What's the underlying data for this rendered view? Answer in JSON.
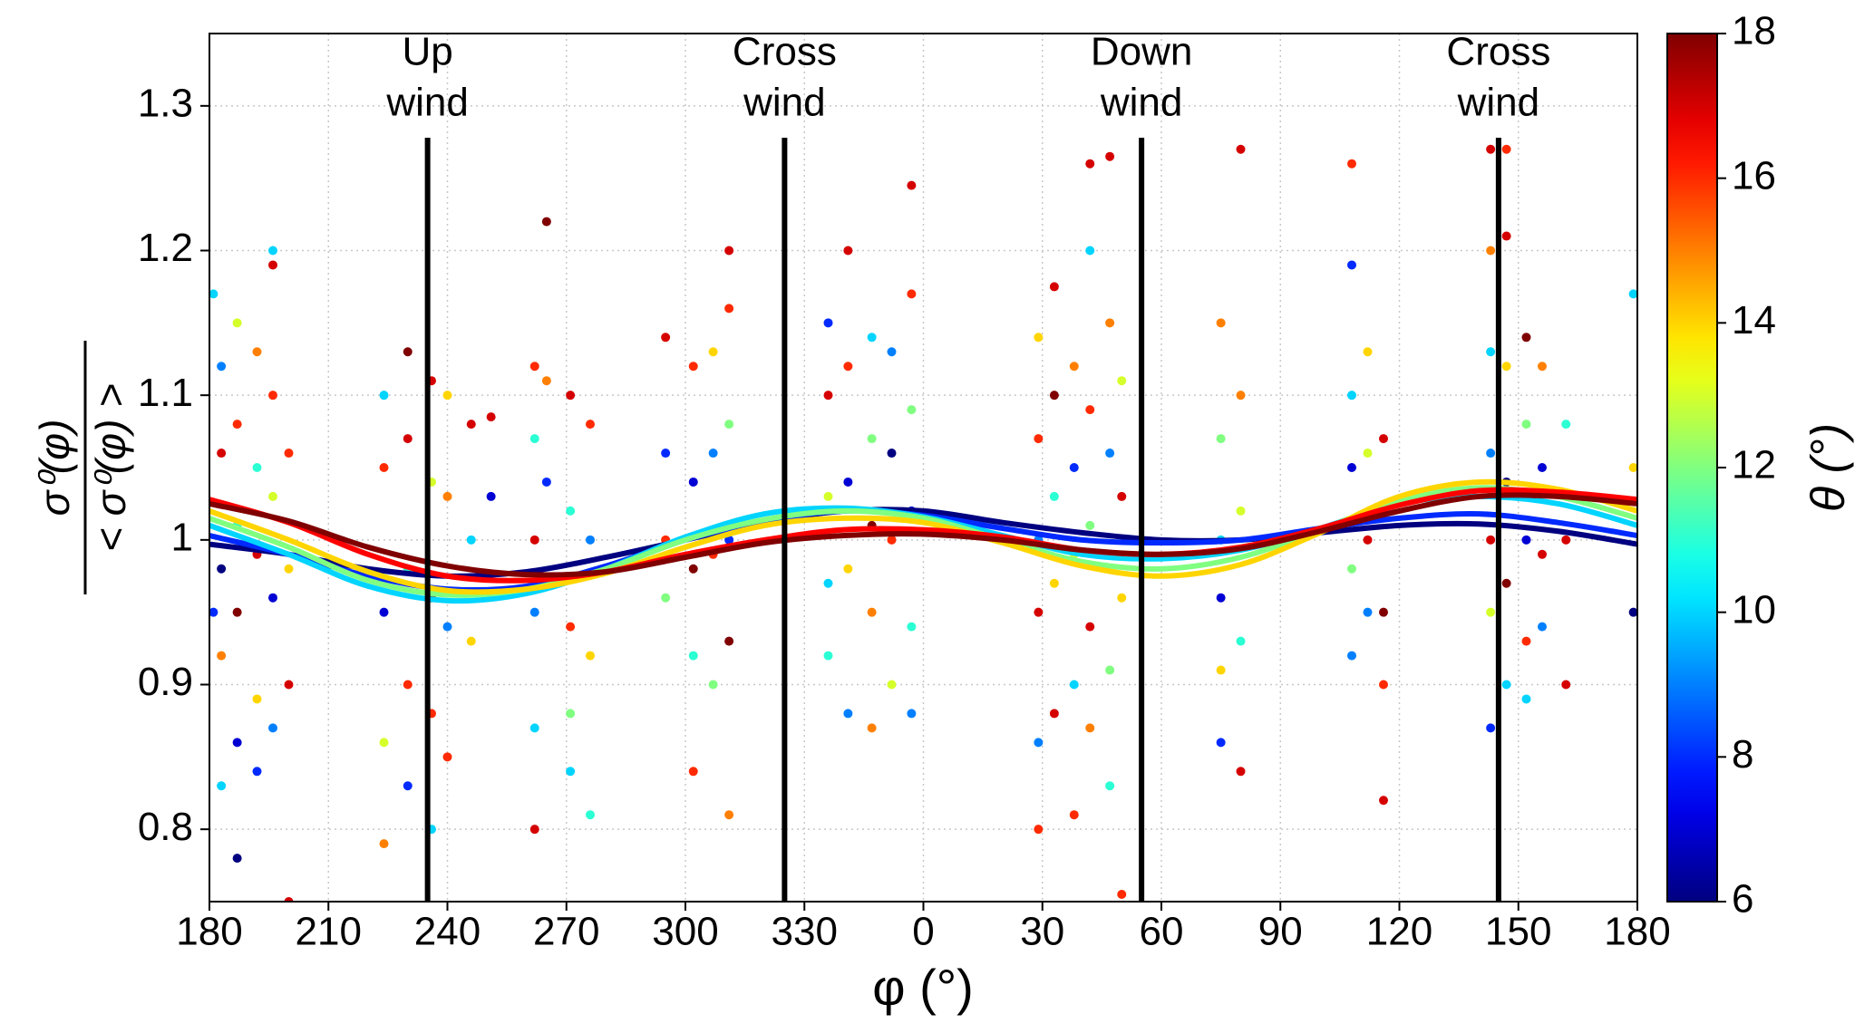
{
  "chart_data": {
    "type": "scatter",
    "xlabel": "φ (°)",
    "ylabel_numerator": "σ⁰(φ)",
    "ylabel_denominator": "< σ⁰(φ) >",
    "colorbar_label": "θ (°)",
    "xlim": [
      180,
      540
    ],
    "xticks": [
      180,
      210,
      240,
      270,
      300,
      330,
      {
        "value": 360,
        "label": "0"
      },
      {
        "value": 390,
        "label": "30"
      },
      {
        "value": 420,
        "label": "60"
      },
      {
        "value": 450,
        "label": "90"
      },
      {
        "value": 480,
        "label": "120"
      },
      {
        "value": 510,
        "label": "150"
      },
      {
        "value": 540,
        "label": "180"
      }
    ],
    "ylim": [
      0.75,
      1.35
    ],
    "yticks": [
      0.8,
      0.9,
      1.0,
      1.1,
      1.2,
      1.3
    ],
    "clim": [
      6,
      18
    ],
    "cticks": [
      6,
      8,
      10,
      12,
      14,
      16,
      18
    ],
    "colormap": "jet",
    "grid": true,
    "annotations": [
      {
        "x": 235,
        "lines": [
          "Up",
          "wind"
        ]
      },
      {
        "x": 325,
        "lines": [
          "Cross",
          "wind"
        ]
      },
      {
        "x": 415,
        "lines": [
          "Down",
          "wind"
        ]
      },
      {
        "x": 505,
        "lines": [
          "Cross",
          "wind"
        ]
      }
    ],
    "curve_x": [
      180,
      200,
      220,
      240,
      260,
      280,
      300,
      320,
      340,
      360,
      380,
      400,
      420,
      440,
      460,
      480,
      500,
      520,
      540
    ],
    "curves": [
      {
        "theta": 6,
        "values": [
          0.997,
          0.99,
          0.98,
          0.975,
          0.978,
          0.988,
          1.0,
          1.012,
          1.02,
          1.02,
          1.012,
          1.005,
          1.0,
          1.0,
          1.005,
          1.01,
          1.011,
          1.006,
          0.997
        ]
      },
      {
        "theta": 8,
        "values": [
          1.003,
          0.99,
          0.975,
          0.966,
          0.968,
          0.982,
          1.0,
          1.013,
          1.02,
          1.017,
          1.008,
          1.0,
          0.998,
          1.0,
          1.008,
          1.015,
          1.018,
          1.012,
          1.003
        ]
      },
      {
        "theta": 10,
        "values": [
          1.01,
          0.99,
          0.968,
          0.958,
          0.963,
          0.98,
          1.002,
          1.018,
          1.022,
          1.016,
          1.003,
          0.99,
          0.987,
          0.993,
          1.008,
          1.025,
          1.03,
          1.025,
          1.01
        ]
      },
      {
        "theta": 12,
        "values": [
          1.015,
          0.995,
          0.972,
          0.962,
          0.966,
          0.98,
          1.0,
          1.014,
          1.02,
          1.015,
          1.0,
          0.985,
          0.98,
          0.988,
          1.007,
          1.027,
          1.036,
          1.03,
          1.015
        ]
      },
      {
        "theta": 14,
        "values": [
          1.02,
          1.0,
          0.978,
          0.965,
          0.966,
          0.977,
          0.995,
          1.01,
          1.015,
          1.012,
          0.998,
          0.982,
          0.975,
          0.983,
          1.005,
          1.03,
          1.04,
          1.035,
          1.02
        ]
      },
      {
        "theta": 16.5,
        "values": [
          1.028,
          1.012,
          0.99,
          0.975,
          0.972,
          0.978,
          0.99,
          1.0,
          1.007,
          1.007,
          1.002,
          0.993,
          0.99,
          0.995,
          1.008,
          1.024,
          1.034,
          1.033,
          1.028
        ]
      },
      {
        "theta": 18,
        "values": [
          1.025,
          1.013,
          0.995,
          0.982,
          0.976,
          0.978,
          0.988,
          0.998,
          1.003,
          1.004,
          1.0,
          0.993,
          0.99,
          0.994,
          1.006,
          1.02,
          1.03,
          1.03,
          1.025
        ]
      }
    ],
    "points": [
      {
        "x": 181,
        "y": 1.17,
        "theta": 10
      },
      {
        "x": 181,
        "y": 0.95,
        "theta": 8
      },
      {
        "x": 183,
        "y": 1.12,
        "theta": 9
      },
      {
        "x": 183,
        "y": 1.06,
        "theta": 17
      },
      {
        "x": 183,
        "y": 0.98,
        "theta": 6
      },
      {
        "x": 183,
        "y": 0.92,
        "theta": 15
      },
      {
        "x": 183,
        "y": 0.83,
        "theta": 10
      },
      {
        "x": 187,
        "y": 1.15,
        "theta": 13
      },
      {
        "x": 187,
        "y": 1.08,
        "theta": 16
      },
      {
        "x": 187,
        "y": 1.01,
        "theta": 11
      },
      {
        "x": 187,
        "y": 0.95,
        "theta": 18
      },
      {
        "x": 187,
        "y": 0.86,
        "theta": 7
      },
      {
        "x": 187,
        "y": 0.78,
        "theta": 6
      },
      {
        "x": 192,
        "y": 1.13,
        "theta": 15
      },
      {
        "x": 192,
        "y": 1.05,
        "theta": 11
      },
      {
        "x": 192,
        "y": 0.99,
        "theta": 17
      },
      {
        "x": 192,
        "y": 0.89,
        "theta": 14
      },
      {
        "x": 192,
        "y": 0.84,
        "theta": 8
      },
      {
        "x": 196,
        "y": 1.2,
        "theta": 10
      },
      {
        "x": 196,
        "y": 1.19,
        "theta": 17
      },
      {
        "x": 196,
        "y": 1.1,
        "theta": 16
      },
      {
        "x": 196,
        "y": 1.03,
        "theta": 13
      },
      {
        "x": 196,
        "y": 0.96,
        "theta": 7
      },
      {
        "x": 196,
        "y": 0.87,
        "theta": 9
      },
      {
        "x": 200,
        "y": 1.06,
        "theta": 16
      },
      {
        "x": 200,
        "y": 0.98,
        "theta": 14
      },
      {
        "x": 200,
        "y": 0.9,
        "theta": 17
      },
      {
        "x": 200,
        "y": 0.75,
        "theta": 17
      },
      {
        "x": 224,
        "y": 1.1,
        "theta": 10
      },
      {
        "x": 224,
        "y": 1.05,
        "theta": 16
      },
      {
        "x": 224,
        "y": 0.95,
        "theta": 7
      },
      {
        "x": 224,
        "y": 0.86,
        "theta": 13
      },
      {
        "x": 224,
        "y": 0.79,
        "theta": 15
      },
      {
        "x": 230,
        "y": 1.13,
        "theta": 18
      },
      {
        "x": 230,
        "y": 1.07,
        "theta": 17
      },
      {
        "x": 230,
        "y": 0.98,
        "theta": 11
      },
      {
        "x": 230,
        "y": 0.9,
        "theta": 16
      },
      {
        "x": 230,
        "y": 0.83,
        "theta": 8
      },
      {
        "x": 236,
        "y": 1.11,
        "theta": 17
      },
      {
        "x": 236,
        "y": 1.04,
        "theta": 13
      },
      {
        "x": 236,
        "y": 0.96,
        "theta": 18
      },
      {
        "x": 236,
        "y": 0.88,
        "theta": 16
      },
      {
        "x": 236,
        "y": 0.8,
        "theta": 10
      },
      {
        "x": 240,
        "y": 1.1,
        "theta": 14
      },
      {
        "x": 240,
        "y": 1.03,
        "theta": 15
      },
      {
        "x": 240,
        "y": 0.94,
        "theta": 9
      },
      {
        "x": 240,
        "y": 0.85,
        "theta": 16
      },
      {
        "x": 246,
        "y": 1.08,
        "theta": 17
      },
      {
        "x": 246,
        "y": 1.0,
        "theta": 10
      },
      {
        "x": 246,
        "y": 0.93,
        "theta": 14
      },
      {
        "x": 251,
        "y": 1.085,
        "theta": 17
      },
      {
        "x": 251,
        "y": 1.03,
        "theta": 7
      },
      {
        "x": 262,
        "y": 1.12,
        "theta": 16
      },
      {
        "x": 262,
        "y": 1.07,
        "theta": 11
      },
      {
        "x": 262,
        "y": 1.0,
        "theta": 17
      },
      {
        "x": 262,
        "y": 0.95,
        "theta": 9
      },
      {
        "x": 262,
        "y": 0.87,
        "theta": 10
      },
      {
        "x": 262,
        "y": 0.8,
        "theta": 17
      },
      {
        "x": 265,
        "y": 1.22,
        "theta": 18
      },
      {
        "x": 265,
        "y": 1.11,
        "theta": 15
      },
      {
        "x": 265,
        "y": 1.04,
        "theta": 8
      },
      {
        "x": 265,
        "y": 0.97,
        "theta": 13
      },
      {
        "x": 271,
        "y": 1.1,
        "theta": 17
      },
      {
        "x": 271,
        "y": 1.02,
        "theta": 11
      },
      {
        "x": 271,
        "y": 0.94,
        "theta": 16
      },
      {
        "x": 271,
        "y": 0.88,
        "theta": 12
      },
      {
        "x": 271,
        "y": 0.84,
        "theta": 10
      },
      {
        "x": 276,
        "y": 1.08,
        "theta": 16
      },
      {
        "x": 276,
        "y": 1.0,
        "theta": 9
      },
      {
        "x": 276,
        "y": 0.92,
        "theta": 14
      },
      {
        "x": 276,
        "y": 0.81,
        "theta": 11
      },
      {
        "x": 295,
        "y": 1.14,
        "theta": 17
      },
      {
        "x": 295,
        "y": 1.06,
        "theta": 8
      },
      {
        "x": 295,
        "y": 1.0,
        "theta": 16
      },
      {
        "x": 295,
        "y": 0.96,
        "theta": 12
      },
      {
        "x": 302,
        "y": 1.12,
        "theta": 16
      },
      {
        "x": 302,
        "y": 1.04,
        "theta": 7
      },
      {
        "x": 302,
        "y": 0.98,
        "theta": 18
      },
      {
        "x": 302,
        "y": 0.92,
        "theta": 11
      },
      {
        "x": 302,
        "y": 0.84,
        "theta": 16
      },
      {
        "x": 307,
        "y": 1.13,
        "theta": 14
      },
      {
        "x": 307,
        "y": 1.06,
        "theta": 9
      },
      {
        "x": 307,
        "y": 0.99,
        "theta": 16
      },
      {
        "x": 307,
        "y": 0.9,
        "theta": 12
      },
      {
        "x": 311,
        "y": 1.2,
        "theta": 17
      },
      {
        "x": 311,
        "y": 1.16,
        "theta": 16
      },
      {
        "x": 311,
        "y": 1.08,
        "theta": 12
      },
      {
        "x": 311,
        "y": 1.0,
        "theta": 8
      },
      {
        "x": 311,
        "y": 0.93,
        "theta": 18
      },
      {
        "x": 311,
        "y": 0.81,
        "theta": 15
      },
      {
        "x": 336,
        "y": 1.15,
        "theta": 8
      },
      {
        "x": 336,
        "y": 1.1,
        "theta": 17
      },
      {
        "x": 336,
        "y": 1.03,
        "theta": 13
      },
      {
        "x": 336,
        "y": 0.97,
        "theta": 10
      },
      {
        "x": 336,
        "y": 0.92,
        "theta": 11
      },
      {
        "x": 341,
        "y": 1.2,
        "theta": 17
      },
      {
        "x": 341,
        "y": 1.12,
        "theta": 16
      },
      {
        "x": 341,
        "y": 1.04,
        "theta": 7
      },
      {
        "x": 341,
        "y": 0.98,
        "theta": 14
      },
      {
        "x": 341,
        "y": 0.88,
        "theta": 9
      },
      {
        "x": 347,
        "y": 1.14,
        "theta": 10
      },
      {
        "x": 347,
        "y": 1.07,
        "theta": 12
      },
      {
        "x": 347,
        "y": 1.01,
        "theta": 18
      },
      {
        "x": 347,
        "y": 0.95,
        "theta": 15
      },
      {
        "x": 347,
        "y": 0.87,
        "theta": 15
      },
      {
        "x": 352,
        "y": 1.13,
        "theta": 9
      },
      {
        "x": 352,
        "y": 1.06,
        "theta": 6
      },
      {
        "x": 352,
        "y": 1.0,
        "theta": 16
      },
      {
        "x": 352,
        "y": 0.9,
        "theta": 13
      },
      {
        "x": 357,
        "y": 1.245,
        "theta": 17
      },
      {
        "x": 357,
        "y": 1.17,
        "theta": 16
      },
      {
        "x": 357,
        "y": 1.09,
        "theta": 12
      },
      {
        "x": 357,
        "y": 1.02,
        "theta": 7
      },
      {
        "x": 357,
        "y": 0.94,
        "theta": 11
      },
      {
        "x": 357,
        "y": 0.88,
        "theta": 9
      },
      {
        "x": 389,
        "y": 1.14,
        "theta": 14
      },
      {
        "x": 389,
        "y": 1.07,
        "theta": 16
      },
      {
        "x": 389,
        "y": 1.0,
        "theta": 9
      },
      {
        "x": 389,
        "y": 0.95,
        "theta": 17
      },
      {
        "x": 389,
        "y": 0.86,
        "theta": 9
      },
      {
        "x": 389,
        "y": 0.8,
        "theta": 16
      },
      {
        "x": 393,
        "y": 1.175,
        "theta": 17
      },
      {
        "x": 393,
        "y": 1.1,
        "theta": 18
      },
      {
        "x": 393,
        "y": 1.03,
        "theta": 11
      },
      {
        "x": 393,
        "y": 0.97,
        "theta": 14
      },
      {
        "x": 393,
        "y": 0.88,
        "theta": 17
      },
      {
        "x": 398,
        "y": 1.12,
        "theta": 15
      },
      {
        "x": 398,
        "y": 1.05,
        "theta": 8
      },
      {
        "x": 398,
        "y": 0.99,
        "theta": 13
      },
      {
        "x": 398,
        "y": 0.9,
        "theta": 10
      },
      {
        "x": 398,
        "y": 0.81,
        "theta": 16
      },
      {
        "x": 402,
        "y": 1.26,
        "theta": 17
      },
      {
        "x": 402,
        "y": 1.2,
        "theta": 10
      },
      {
        "x": 402,
        "y": 1.09,
        "theta": 16
      },
      {
        "x": 402,
        "y": 1.01,
        "theta": 12
      },
      {
        "x": 402,
        "y": 0.94,
        "theta": 17
      },
      {
        "x": 402,
        "y": 0.87,
        "theta": 15
      },
      {
        "x": 407,
        "y": 1.265,
        "theta": 17
      },
      {
        "x": 407,
        "y": 1.15,
        "theta": 15
      },
      {
        "x": 407,
        "y": 1.06,
        "theta": 9
      },
      {
        "x": 407,
        "y": 0.99,
        "theta": 7
      },
      {
        "x": 407,
        "y": 0.91,
        "theta": 12
      },
      {
        "x": 407,
        "y": 0.83,
        "theta": 11
      },
      {
        "x": 410,
        "y": 1.11,
        "theta": 13
      },
      {
        "x": 410,
        "y": 1.03,
        "theta": 17
      },
      {
        "x": 410,
        "y": 0.96,
        "theta": 14
      },
      {
        "x": 410,
        "y": 0.755,
        "theta": 16
      },
      {
        "x": 435,
        "y": 1.15,
        "theta": 15
      },
      {
        "x": 435,
        "y": 1.07,
        "theta": 12
      },
      {
        "x": 435,
        "y": 1.0,
        "theta": 10
      },
      {
        "x": 435,
        "y": 0.96,
        "theta": 7
      },
      {
        "x": 435,
        "y": 0.91,
        "theta": 14
      },
      {
        "x": 435,
        "y": 0.86,
        "theta": 8
      },
      {
        "x": 440,
        "y": 1.27,
        "theta": 17
      },
      {
        "x": 440,
        "y": 1.1,
        "theta": 15
      },
      {
        "x": 440,
        "y": 1.02,
        "theta": 13
      },
      {
        "x": 440,
        "y": 0.93,
        "theta": 11
      },
      {
        "x": 440,
        "y": 0.84,
        "theta": 17
      },
      {
        "x": 468,
        "y": 1.26,
        "theta": 16
      },
      {
        "x": 468,
        "y": 1.19,
        "theta": 8
      },
      {
        "x": 468,
        "y": 1.1,
        "theta": 10
      },
      {
        "x": 468,
        "y": 1.05,
        "theta": 7
      },
      {
        "x": 468,
        "y": 0.98,
        "theta": 12
      },
      {
        "x": 468,
        "y": 0.92,
        "theta": 9
      },
      {
        "x": 472,
        "y": 1.13,
        "theta": 14
      },
      {
        "x": 472,
        "y": 1.06,
        "theta": 13
      },
      {
        "x": 472,
        "y": 1.0,
        "theta": 17
      },
      {
        "x": 472,
        "y": 0.95,
        "theta": 9
      },
      {
        "x": 476,
        "y": 1.07,
        "theta": 17
      },
      {
        "x": 476,
        "y": 0.95,
        "theta": 18
      },
      {
        "x": 476,
        "y": 0.9,
        "theta": 16
      },
      {
        "x": 476,
        "y": 0.82,
        "theta": 17
      },
      {
        "x": 503,
        "y": 1.27,
        "theta": 17
      },
      {
        "x": 503,
        "y": 1.2,
        "theta": 15
      },
      {
        "x": 503,
        "y": 1.13,
        "theta": 10
      },
      {
        "x": 503,
        "y": 1.06,
        "theta": 9
      },
      {
        "x": 503,
        "y": 1.0,
        "theta": 17
      },
      {
        "x": 503,
        "y": 0.95,
        "theta": 13
      },
      {
        "x": 503,
        "y": 0.87,
        "theta": 8
      },
      {
        "x": 507,
        "y": 1.27,
        "theta": 16
      },
      {
        "x": 507,
        "y": 1.21,
        "theta": 17
      },
      {
        "x": 507,
        "y": 1.12,
        "theta": 14
      },
      {
        "x": 507,
        "y": 1.04,
        "theta": 6
      },
      {
        "x": 507,
        "y": 0.97,
        "theta": 18
      },
      {
        "x": 507,
        "y": 0.9,
        "theta": 10
      },
      {
        "x": 512,
        "y": 1.14,
        "theta": 18
      },
      {
        "x": 512,
        "y": 1.08,
        "theta": 12
      },
      {
        "x": 512,
        "y": 1.0,
        "theta": 7
      },
      {
        "x": 512,
        "y": 0.93,
        "theta": 16
      },
      {
        "x": 512,
        "y": 0.89,
        "theta": 10
      },
      {
        "x": 516,
        "y": 1.12,
        "theta": 15
      },
      {
        "x": 516,
        "y": 1.05,
        "theta": 7
      },
      {
        "x": 516,
        "y": 0.99,
        "theta": 17
      },
      {
        "x": 516,
        "y": 0.94,
        "theta": 9
      },
      {
        "x": 522,
        "y": 1.08,
        "theta": 11
      },
      {
        "x": 522,
        "y": 1.0,
        "theta": 17
      },
      {
        "x": 522,
        "y": 0.9,
        "theta": 17
      },
      {
        "x": 539,
        "y": 1.17,
        "theta": 10
      },
      {
        "x": 539,
        "y": 1.05,
        "theta": 14
      },
      {
        "x": 539,
        "y": 0.95,
        "theta": 6
      }
    ]
  }
}
